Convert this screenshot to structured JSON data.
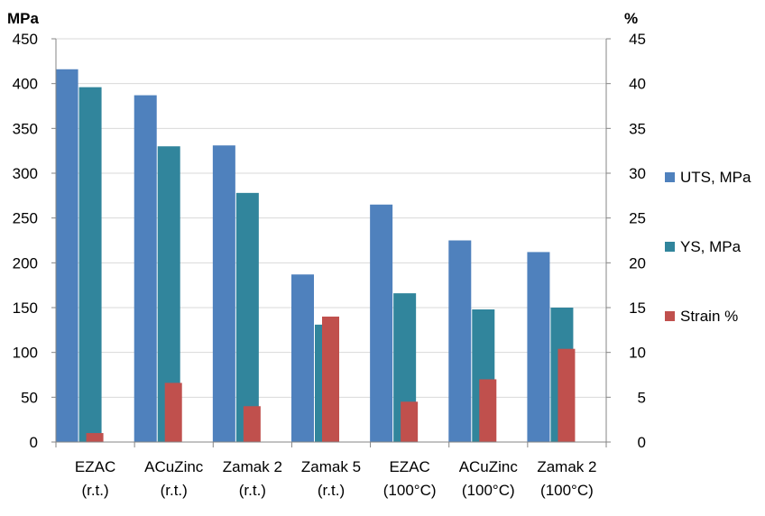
{
  "chart_data": {
    "type": "bar",
    "title": "",
    "left_unit": "MPa",
    "right_unit": "%",
    "left_ylim": [
      0,
      450
    ],
    "right_ylim": [
      0,
      45
    ],
    "left_ticks": [
      "0",
      "50",
      "100",
      "150",
      "200",
      "250",
      "300",
      "350",
      "400",
      "450"
    ],
    "right_ticks": [
      "0",
      "5",
      "10",
      "15",
      "20",
      "25",
      "30",
      "35",
      "40",
      "45"
    ],
    "categories": [
      [
        "EZAC",
        "(r.t.)"
      ],
      [
        "ACuZinc",
        "(r.t.)"
      ],
      [
        "Zamak 2",
        "(r.t.)"
      ],
      [
        "Zamak 5",
        "(r.t.)"
      ],
      [
        "EZAC",
        "(100°C)"
      ],
      [
        "ACuZinc",
        "(100°C)"
      ],
      [
        "Zamak 2",
        "(100°C)"
      ]
    ],
    "series": [
      {
        "name": "UTS, MPa",
        "axis": "left",
        "color": "#4f81bd",
        "values": [
          416,
          387,
          331,
          187,
          265,
          225,
          212
        ]
      },
      {
        "name": "YS, MPa",
        "axis": "left",
        "color": "#31859c",
        "values": [
          396,
          330,
          278,
          131,
          166,
          148,
          150
        ]
      },
      {
        "name": "Strain %",
        "axis": "right",
        "color": "#c0504d",
        "values": [
          1,
          6.6,
          4,
          14,
          4.5,
          7,
          10.4
        ]
      }
    ],
    "grid": true,
    "legend_position": "right"
  }
}
